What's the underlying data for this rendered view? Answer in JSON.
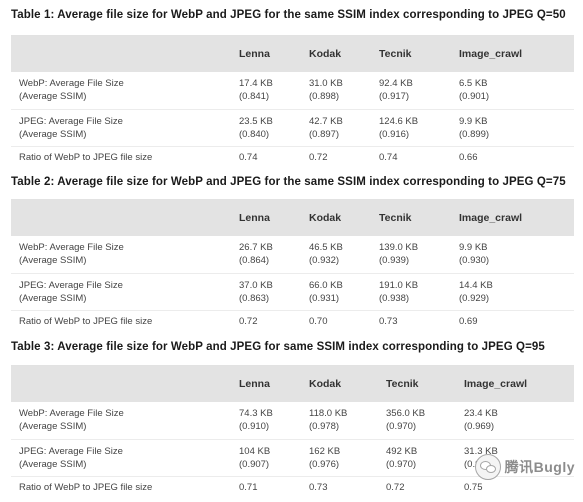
{
  "tables": [
    {
      "caption": "Table 1: Average file size for WebP and JPEG for the same SSIM index corresponding to JPEG Q=50",
      "headers": [
        "",
        "Lenna",
        "Kodak",
        "Tecnik",
        "Image_crawl"
      ],
      "rows": [
        {
          "label": [
            "WebP: Average File Size",
            "(Average SSIM)"
          ],
          "cells": [
            [
              "17.4 KB",
              "(0.841)"
            ],
            [
              "31.0 KB",
              "(0.898)"
            ],
            [
              "92.4 KB",
              "(0.917)"
            ],
            [
              "6.5 KB",
              "(0.901)"
            ]
          ]
        },
        {
          "label": [
            "JPEG: Average File Size",
            "(Average SSIM)"
          ],
          "cells": [
            [
              "23.5 KB",
              "(0.840)"
            ],
            [
              "42.7 KB",
              "(0.897)"
            ],
            [
              "124.6 KB",
              "(0.916)"
            ],
            [
              "9.9 KB",
              "(0.899)"
            ]
          ]
        },
        {
          "label": [
            "Ratio of WebP to JPEG file size"
          ],
          "cells": [
            [
              "0.74"
            ],
            [
              "0.72"
            ],
            [
              "0.74"
            ],
            [
              "0.66"
            ]
          ]
        }
      ]
    },
    {
      "caption": "Table 2: Average file size for WebP and JPEG for the same SSIM index corresponding to JPEG Q=75",
      "headers": [
        "",
        "Lenna",
        "Kodak",
        "Tecnik",
        "Image_crawl"
      ],
      "rows": [
        {
          "label": [
            "WebP: Average File Size",
            "(Average SSIM)"
          ],
          "cells": [
            [
              "26.7 KB",
              "(0.864)"
            ],
            [
              "46.5 KB",
              "(0.932)"
            ],
            [
              "139.0 KB",
              "(0.939)"
            ],
            [
              "9.9 KB",
              "(0.930)"
            ]
          ]
        },
        {
          "label": [
            "JPEG: Average File Size",
            "(Average SSIM)"
          ],
          "cells": [
            [
              "37.0 KB",
              "(0.863)"
            ],
            [
              "66.0 KB",
              "(0.931)"
            ],
            [
              "191.0 KB",
              "(0.938)"
            ],
            [
              "14.4 KB",
              "(0.929)"
            ]
          ]
        },
        {
          "label": [
            "Ratio of WebP to JPEG file size"
          ],
          "cells": [
            [
              "0.72"
            ],
            [
              "0.70"
            ],
            [
              "0.73"
            ],
            [
              "0.69"
            ]
          ]
        }
      ]
    },
    {
      "caption": "Table 3: Average file size for WebP and JPEG for same SSIM index corresponding to JPEG Q=95",
      "headers": [
        "",
        "Lenna",
        "Kodak",
        "Tecnik",
        "Image_crawl"
      ],
      "rows": [
        {
          "label": [
            "WebP: Average File Size",
            "(Average SSIM)"
          ],
          "cells": [
            [
              "74.3 KB",
              "(0.910)"
            ],
            [
              "118.0 KB",
              "(0.978)"
            ],
            [
              "356.0 KB",
              "(0.970)"
            ],
            [
              "23.4 KB",
              "(0.969)"
            ]
          ]
        },
        {
          "label": [
            "JPEG: Average File Size",
            "(Average SSIM)"
          ],
          "cells": [
            [
              "104 KB",
              "(0.907)"
            ],
            [
              "162 KB",
              "(0.976)"
            ],
            [
              "492 KB",
              "(0.970)"
            ],
            [
              "31.3 KB",
              "(0.968)"
            ]
          ]
        },
        {
          "label": [
            "Ratio of WebP to JPEG file size"
          ],
          "cells": [
            [
              "0.71"
            ],
            [
              "0.73"
            ],
            [
              "0.72"
            ],
            [
              "0.75"
            ]
          ]
        }
      ]
    }
  ],
  "watermark": {
    "icon": "wechat-icon",
    "text": "腾讯Bugly"
  }
}
